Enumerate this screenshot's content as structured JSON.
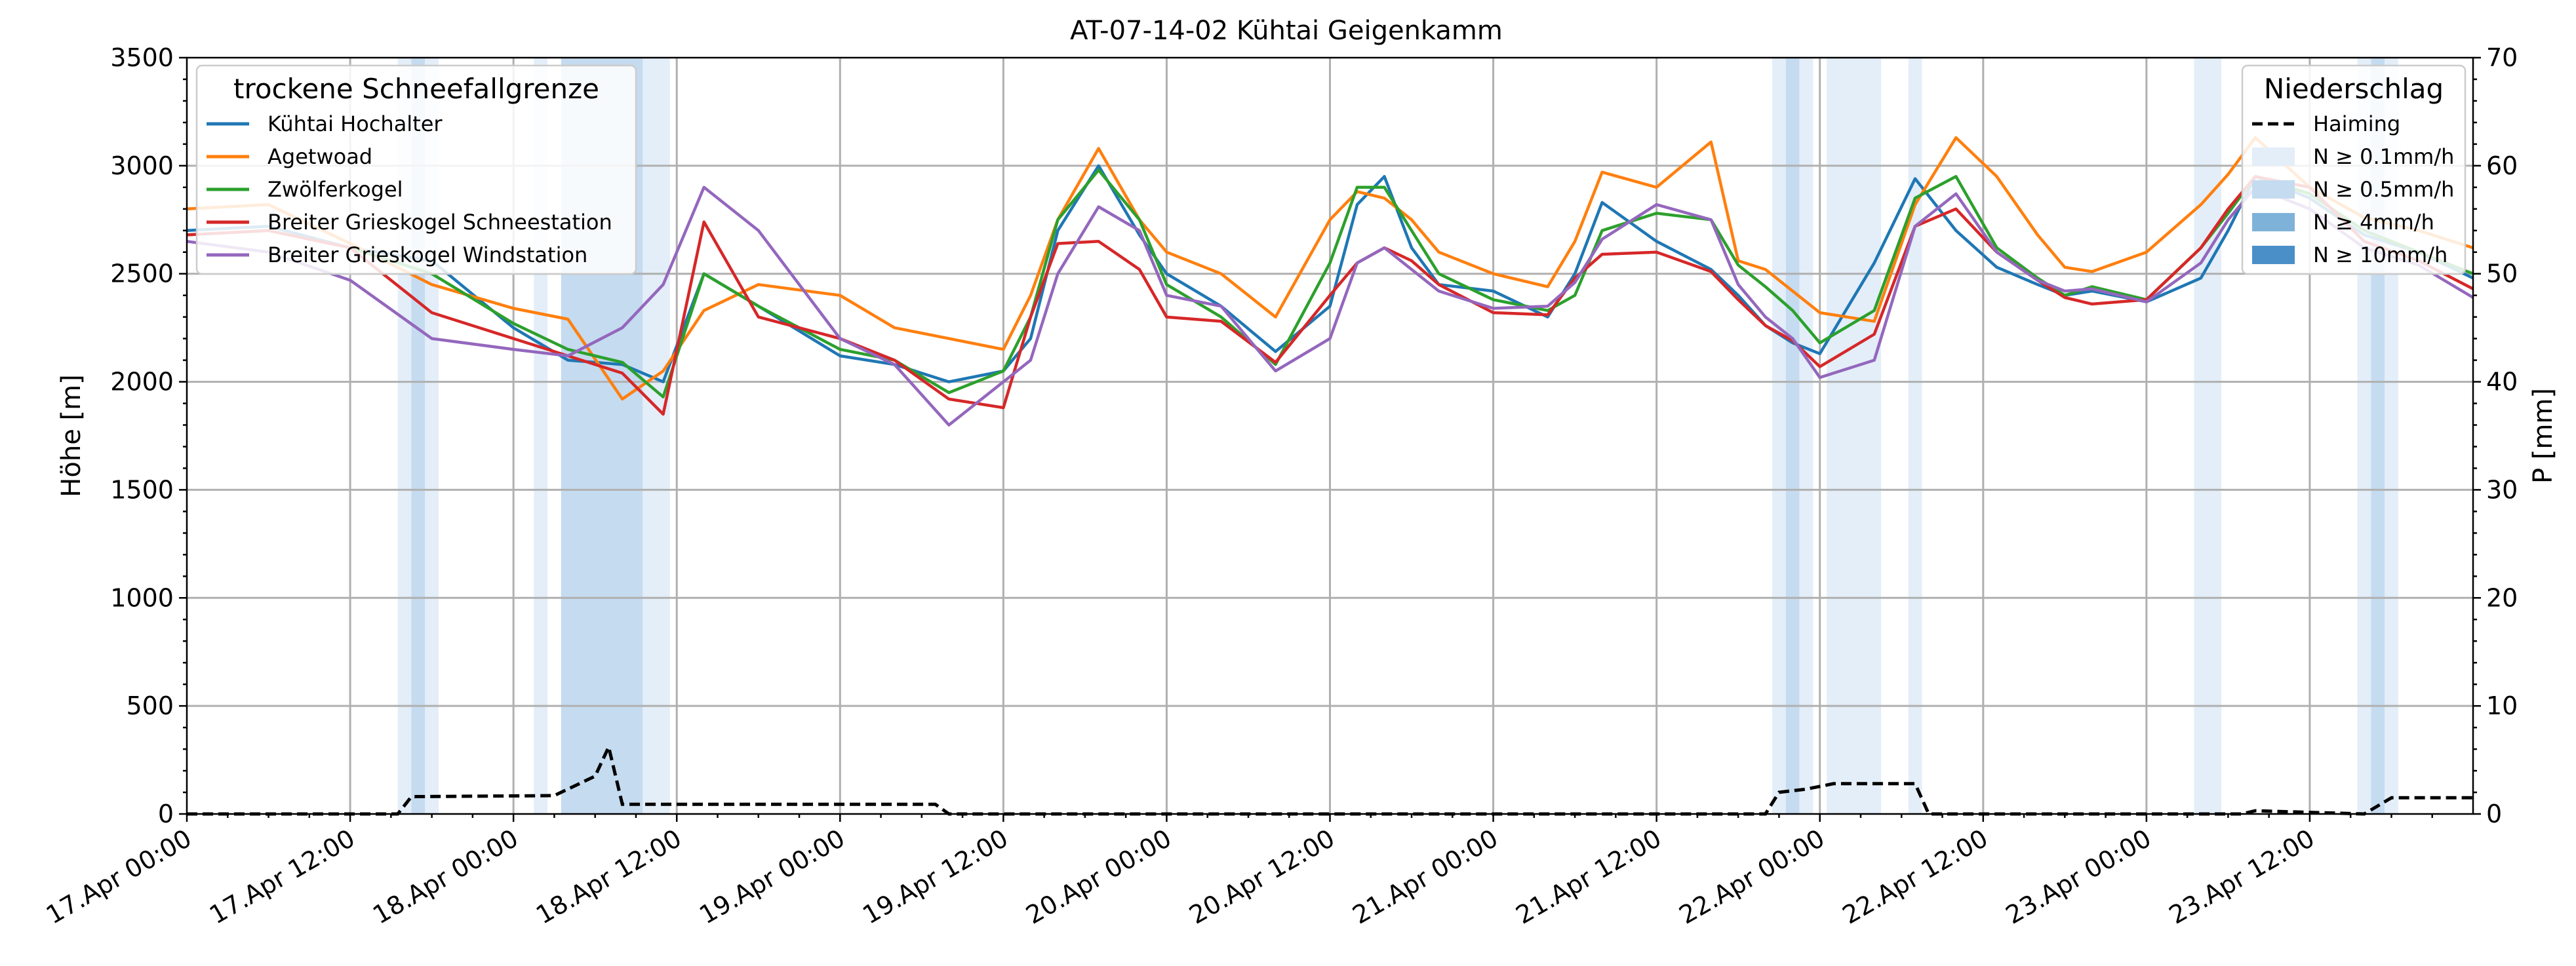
{
  "chart_data": {
    "type": "line",
    "title": "AT-07-14-02 Kühtai Geigenkamm",
    "ylabel": "Höhe [m]",
    "y2label": "P [mm]",
    "ylim": [
      0,
      3500
    ],
    "y2lim": [
      0,
      70
    ],
    "xlim": [
      "17.Apr 00:00",
      "24.Apr 00:00"
    ],
    "yticks": [
      "0",
      "500",
      "1000",
      "1500",
      "2000",
      "2500",
      "3000",
      "3500"
    ],
    "y2ticks": [
      "0",
      "10",
      "20",
      "30",
      "40",
      "50",
      "60",
      "70"
    ],
    "xticks": [
      "17.Apr 00:00",
      "17.Apr 12:00",
      "18.Apr 00:00",
      "18.Apr 12:00",
      "19.Apr 00:00",
      "19.Apr 12:00",
      "20.Apr 00:00",
      "20.Apr 12:00",
      "21.Apr 00:00",
      "21.Apr 12:00",
      "22.Apr 00:00",
      "22.Apr 12:00",
      "23.Apr 00:00",
      "23.Apr 12:00"
    ],
    "grid": true,
    "legend1": {
      "placement": "top-left",
      "title": "trockene Schneefallgrenze",
      "entries": [
        "Kühtai Hochalter",
        "Agetwoad",
        "Zwölferkogel",
        "Breiter Grieskogel Schneestation",
        "Breiter Grieskogel Windstation"
      ]
    },
    "legend2": {
      "placement": "top-right",
      "title": "Niederschlag",
      "line_entry": "Haiming",
      "patch_entries": [
        "N ≥ 0.1mm/h",
        "N ≥ 0.5mm/h",
        "N ≥ 4mm/h",
        "N ≥ 10mm/h"
      ],
      "patch_colors": [
        "#e3eef9",
        "#c5dbf0",
        "#7fb2d9",
        "#4a8fc7"
      ]
    },
    "precip_bands": [
      [
        15.5,
        16.5,
        1
      ],
      [
        16.5,
        17.5,
        2
      ],
      [
        17.5,
        18.5,
        1
      ],
      [
        25.5,
        26.5,
        1
      ],
      [
        27.5,
        33.5,
        2
      ],
      [
        33.5,
        35.5,
        1
      ],
      [
        116.5,
        117.5,
        1
      ],
      [
        117.5,
        118.5,
        2
      ],
      [
        118.5,
        119.5,
        1
      ],
      [
        120.5,
        124.5,
        1
      ],
      [
        126.5,
        127.5,
        1
      ],
      [
        147.5,
        149.5,
        1
      ],
      [
        159.5,
        160.5,
        1
      ],
      [
        160.5,
        161.5,
        2
      ],
      [
        161.5,
        162.5,
        1
      ]
    ],
    "haiming": {
      "name": "Haiming",
      "points": [
        [
          0,
          0
        ],
        [
          15.5,
          0
        ],
        [
          16.5,
          1.6
        ],
        [
          27,
          1.7
        ],
        [
          30,
          3.5
        ],
        [
          31,
          6.2
        ],
        [
          32,
          0.9
        ],
        [
          55,
          0.9
        ],
        [
          56,
          0
        ],
        [
          116,
          0
        ],
        [
          117,
          2
        ],
        [
          119,
          2.3
        ],
        [
          121,
          2.8
        ],
        [
          127,
          2.8
        ],
        [
          128,
          0
        ],
        [
          151,
          0
        ],
        [
          152,
          0.3
        ],
        [
          160,
          0
        ],
        [
          162,
          1.5
        ],
        [
          168,
          1.5
        ]
      ]
    },
    "series": [
      {
        "name": "Kühtai Hochalter",
        "color": "#1f77b4",
        "x": [
          0,
          6,
          12,
          18,
          24,
          28,
          32,
          35,
          38,
          42,
          48,
          52,
          56,
          60,
          62,
          64,
          67,
          70,
          72,
          76,
          80,
          84,
          86,
          88,
          90,
          92,
          96,
          100,
          102,
          104,
          108,
          112,
          114,
          116,
          118,
          120,
          124,
          127,
          130,
          133,
          136,
          138,
          140,
          144,
          148,
          150,
          152,
          156,
          160,
          164,
          168
        ],
        "values": [
          2700,
          2720,
          2620,
          2560,
          2250,
          2100,
          2080,
          2000,
          2500,
          2350,
          2120,
          2080,
          2000,
          2050,
          2200,
          2700,
          3000,
          2680,
          2500,
          2350,
          2140,
          2350,
          2820,
          2950,
          2620,
          2450,
          2420,
          2300,
          2500,
          2830,
          2650,
          2520,
          2400,
          2260,
          2180,
          2130,
          2550,
          2940,
          2700,
          2530,
          2450,
          2400,
          2420,
          2370,
          2480,
          2700,
          2950,
          2850,
          2680,
          2600,
          2480
        ]
      },
      {
        "name": "Agetwoad",
        "color": "#ff7f0e",
        "x": [
          0,
          6,
          12,
          18,
          24,
          28,
          32,
          35,
          38,
          42,
          48,
          52,
          56,
          60,
          62,
          64,
          67,
          70,
          72,
          76,
          80,
          84,
          86,
          88,
          90,
          92,
          96,
          100,
          102,
          104,
          108,
          112,
          114,
          116,
          118,
          120,
          124,
          127,
          130,
          133,
          136,
          138,
          140,
          144,
          148,
          150,
          152,
          156,
          160,
          164,
          168
        ],
        "values": [
          2800,
          2820,
          2640,
          2450,
          2340,
          2290,
          1920,
          2050,
          2330,
          2450,
          2400,
          2250,
          2200,
          2150,
          2400,
          2750,
          3080,
          2750,
          2600,
          2500,
          2300,
          2750,
          2880,
          2850,
          2750,
          2600,
          2500,
          2440,
          2650,
          2970,
          2900,
          3110,
          2560,
          2520,
          2420,
          2320,
          2280,
          2820,
          3130,
          2950,
          2680,
          2530,
          2510,
          2600,
          2820,
          2960,
          3130,
          2900,
          2760,
          2700,
          2620
        ]
      },
      {
        "name": "Zwölferkogel",
        "color": "#2ca02c",
        "x": [
          0,
          6,
          12,
          18,
          24,
          28,
          32,
          35,
          38,
          42,
          48,
          52,
          56,
          60,
          62,
          64,
          67,
          70,
          72,
          76,
          80,
          84,
          86,
          88,
          90,
          92,
          96,
          100,
          102,
          104,
          108,
          112,
          114,
          116,
          118,
          120,
          124,
          127,
          130,
          133,
          136,
          138,
          140,
          144,
          148,
          150,
          152,
          156,
          160,
          164,
          168
        ],
        "values": [
          2680,
          2700,
          2620,
          2500,
          2270,
          2150,
          2090,
          1930,
          2500,
          2350,
          2150,
          2100,
          1950,
          2050,
          2300,
          2750,
          2980,
          2750,
          2450,
          2300,
          2080,
          2550,
          2900,
          2900,
          2700,
          2500,
          2380,
          2330,
          2400,
          2700,
          2780,
          2750,
          2540,
          2440,
          2330,
          2180,
          2330,
          2850,
          2950,
          2620,
          2480,
          2400,
          2440,
          2380,
          2620,
          2780,
          2950,
          2870,
          2700,
          2600,
          2500
        ]
      },
      {
        "name": "Breiter Grieskogel Schneestation",
        "color": "#d62728",
        "x": [
          0,
          6,
          12,
          18,
          24,
          28,
          32,
          35,
          38,
          42,
          48,
          52,
          56,
          60,
          62,
          64,
          67,
          70,
          72,
          76,
          80,
          84,
          86,
          88,
          90,
          92,
          96,
          100,
          102,
          104,
          108,
          112,
          114,
          116,
          118,
          120,
          124,
          127,
          130,
          133,
          136,
          138,
          140,
          144,
          148,
          150,
          152,
          156,
          160,
          164,
          168
        ],
        "values": [
          2680,
          2700,
          2620,
          2320,
          2200,
          2120,
          2040,
          1850,
          2740,
          2300,
          2200,
          2100,
          1920,
          1880,
          2300,
          2640,
          2650,
          2520,
          2300,
          2280,
          2090,
          2400,
          2550,
          2620,
          2560,
          2450,
          2320,
          2310,
          2480,
          2590,
          2600,
          2510,
          2380,
          2260,
          2190,
          2070,
          2220,
          2720,
          2800,
          2600,
          2470,
          2390,
          2360,
          2380,
          2620,
          2800,
          2950,
          2900,
          2650,
          2560,
          2430
        ]
      },
      {
        "name": "Breiter Grieskogel Windstation",
        "color": "#9467bd",
        "x": [
          0,
          6,
          12,
          18,
          24,
          28,
          32,
          35,
          38,
          42,
          48,
          52,
          56,
          60,
          62,
          64,
          67,
          70,
          72,
          76,
          80,
          84,
          86,
          88,
          90,
          92,
          96,
          100,
          102,
          104,
          108,
          112,
          114,
          116,
          118,
          120,
          124,
          127,
          130,
          133,
          136,
          138,
          140,
          144,
          148,
          150,
          152,
          156,
          160,
          164,
          168
        ],
        "values": [
          2650,
          2600,
          2470,
          2200,
          2150,
          2120,
          2250,
          2450,
          2900,
          2700,
          2200,
          2080,
          1800,
          2000,
          2100,
          2500,
          2810,
          2700,
          2400,
          2350,
          2050,
          2200,
          2550,
          2620,
          2520,
          2420,
          2340,
          2350,
          2460,
          2660,
          2820,
          2750,
          2450,
          2300,
          2200,
          2020,
          2100,
          2720,
          2870,
          2600,
          2470,
          2420,
          2430,
          2370,
          2550,
          2750,
          2900,
          2800,
          2620,
          2540,
          2390
        ]
      }
    ]
  }
}
